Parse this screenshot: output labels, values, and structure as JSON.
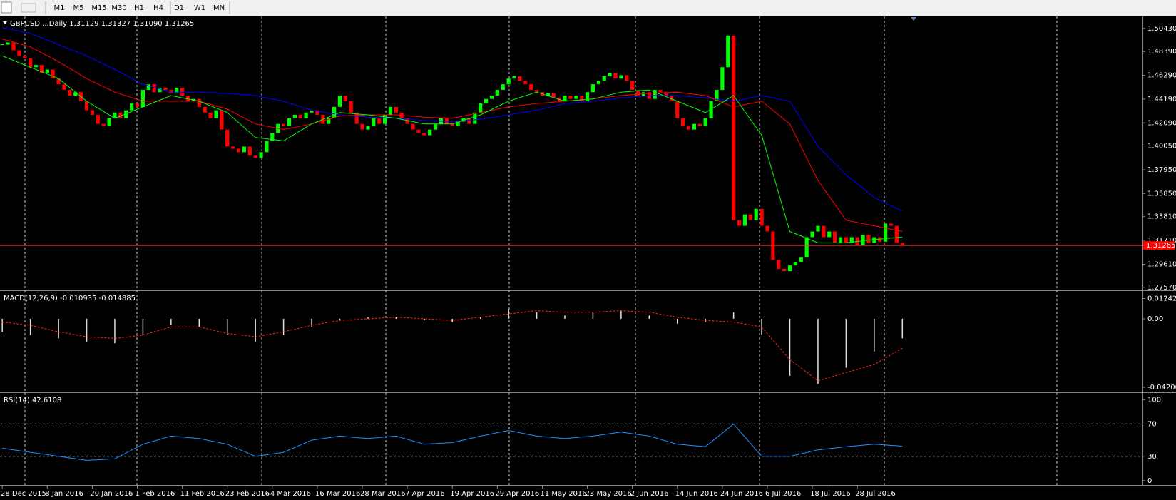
{
  "toolbar": {
    "timeframes": [
      "M1",
      "M5",
      "M15",
      "M30",
      "H1",
      "H4",
      "D1",
      "W1",
      "MN"
    ]
  },
  "chart": {
    "title": "GBPUSD...,Daily",
    "ohlc": [
      "1.31129",
      "1.31327",
      "1.31090",
      "1.31265"
    ],
    "ylim": [
      1.2737,
      1.5149
    ],
    "yticks": [
      {
        "value": 1.5043,
        "label": "1.50430"
      },
      {
        "value": 1.4839,
        "label": "1.48390"
      },
      {
        "value": 1.4629,
        "label": "1.46290"
      },
      {
        "value": 1.4419,
        "label": "1.44190"
      },
      {
        "value": 1.4209,
        "label": "1.42090"
      },
      {
        "value": 1.4005,
        "label": "1.40050"
      },
      {
        "value": 1.3795,
        "label": "1.37950"
      },
      {
        "value": 1.3585,
        "label": "1.35850"
      },
      {
        "value": 1.3381,
        "label": "1.33810"
      },
      {
        "value": 1.3171,
        "label": "1.31710"
      },
      {
        "value": 1.2961,
        "label": "1.29610"
      },
      {
        "value": 1.2757,
        "label": "1.27570"
      }
    ],
    "price": 1.31265,
    "closes": [
      1.49,
      1.492,
      1.485,
      1.48,
      1.478,
      1.47,
      1.472,
      1.465,
      1.468,
      1.46,
      1.455,
      1.45,
      1.445,
      1.448,
      1.44,
      1.432,
      1.428,
      1.42,
      1.418,
      1.425,
      1.43,
      1.425,
      1.432,
      1.438,
      1.435,
      1.45,
      1.455,
      1.448,
      1.452,
      1.45,
      1.447,
      1.452,
      1.445,
      1.44,
      1.442,
      1.435,
      1.43,
      1.425,
      1.432,
      1.415,
      1.4,
      1.398,
      1.395,
      1.4,
      1.392,
      1.39,
      1.395,
      1.405,
      1.412,
      1.42,
      1.418,
      1.425,
      1.428,
      1.425,
      1.43,
      1.432,
      1.428,
      1.42,
      1.425,
      1.435,
      1.445,
      1.44,
      1.43,
      1.42,
      1.415,
      1.418,
      1.425,
      1.42,
      1.428,
      1.435,
      1.43,
      1.425,
      1.42,
      1.415,
      1.412,
      1.41,
      1.415,
      1.42,
      1.425,
      1.42,
      1.418,
      1.422,
      1.425,
      1.42,
      1.43,
      1.438,
      1.442,
      1.445,
      1.45,
      1.455,
      1.46,
      1.462,
      1.458,
      1.455,
      1.45,
      1.448,
      1.445,
      1.447,
      1.443,
      1.44,
      1.445,
      1.442,
      1.445,
      1.44,
      1.448,
      1.455,
      1.458,
      1.462,
      1.465,
      1.46,
      1.463,
      1.458,
      1.45,
      1.445,
      1.448,
      1.442,
      1.45,
      1.448,
      1.445,
      1.44,
      1.425,
      1.418,
      1.415,
      1.42,
      1.418,
      1.425,
      1.44,
      1.45,
      1.47,
      1.498,
      1.335,
      1.33,
      1.34,
      1.335,
      1.345,
      1.33,
      1.325,
      1.3,
      1.292,
      1.29,
      1.295,
      1.298,
      1.302,
      1.32,
      1.325,
      1.33,
      1.32,
      1.325,
      1.315,
      1.32,
      1.315,
      1.32,
      1.313,
      1.322,
      1.315,
      1.32,
      1.316,
      1.332,
      1.33,
      1.315,
      1.313
    ],
    "sample_bars": [
      0,
      5,
      10,
      15,
      20,
      25,
      30,
      35,
      40,
      45,
      50,
      55,
      60,
      65,
      70,
      75,
      80,
      85,
      90,
      95,
      100,
      105,
      110,
      115,
      120,
      125,
      130,
      135,
      140,
      145,
      150,
      155,
      160
    ],
    "ma": [
      {
        "color": "#0000ff",
        "values": [
          1.505,
          1.5,
          1.49,
          1.48,
          1.468,
          1.455,
          1.448,
          1.448,
          1.447,
          1.445,
          1.44,
          1.432,
          1.428,
          1.426,
          1.425,
          1.423,
          1.422,
          1.424,
          1.428,
          1.432,
          1.438,
          1.44,
          1.443,
          1.445,
          1.445,
          1.443,
          1.44,
          1.445,
          1.44,
          1.4,
          1.375,
          1.355,
          1.343
        ]
      },
      {
        "color": "#ff0000",
        "values": [
          1.495,
          1.488,
          1.475,
          1.46,
          1.448,
          1.44,
          1.44,
          1.44,
          1.433,
          1.42,
          1.415,
          1.42,
          1.427,
          1.428,
          1.428,
          1.426,
          1.425,
          1.43,
          1.435,
          1.438,
          1.44,
          1.442,
          1.445,
          1.447,
          1.448,
          1.445,
          1.435,
          1.44,
          1.42,
          1.37,
          1.335,
          1.33,
          1.325
        ]
      },
      {
        "color": "#00ff00",
        "values": [
          1.48,
          1.47,
          1.46,
          1.44,
          1.425,
          1.435,
          1.445,
          1.44,
          1.43,
          1.408,
          1.405,
          1.42,
          1.43,
          1.428,
          1.425,
          1.42,
          1.42,
          1.428,
          1.44,
          1.448,
          1.44,
          1.442,
          1.448,
          1.45,
          1.44,
          1.43,
          1.445,
          1.41,
          1.325,
          1.315,
          1.315,
          1.318,
          1.32
        ]
      }
    ],
    "macd": {
      "label": "MACD(12,26,9) -0.010935 -0.014885",
      "ylim": [
        -0.0442,
        0.0166
      ],
      "yticks": [
        0.012424,
        {
          "value": 0,
          "label": "0.00"
        },
        -0.042007
      ],
      "histogram": [
        -0.008,
        -0.01,
        -0.012,
        -0.014,
        -0.015,
        -0.01,
        -0.004,
        -0.005,
        -0.01,
        -0.014,
        -0.01,
        -0.005,
        -0.001,
        0.001,
        0.001,
        -0.001,
        -0.002,
        0.001,
        0.006,
        0.004,
        0.002,
        0.004,
        0.005,
        0.002,
        -0.003,
        -0.002,
        0.004,
        -0.01,
        -0.035,
        -0.04,
        -0.03,
        -0.02,
        -0.012
      ],
      "signal": [
        -0.002,
        -0.004,
        -0.008,
        -0.011,
        -0.012,
        -0.01,
        -0.005,
        -0.005,
        -0.009,
        -0.011,
        -0.008,
        -0.004,
        -0.001,
        0,
        0.001,
        0,
        -0.001,
        0.001,
        0.003,
        0.005,
        0.004,
        0.004,
        0.005,
        0.004,
        0.001,
        -0.001,
        -0.002,
        -0.005,
        -0.025,
        -0.038,
        -0.033,
        -0.028,
        -0.018
      ]
    },
    "rsi": {
      "label": "RSI(14) 42.6108",
      "ylim": [
        -4.6,
        107.4
      ],
      "yticks": [
        100,
        70,
        30,
        0
      ],
      "levels": [
        70,
        30
      ],
      "values": [
        40,
        35,
        30,
        25,
        27,
        45,
        55,
        52,
        45,
        30,
        35,
        50,
        55,
        52,
        55,
        45,
        47,
        55,
        62,
        55,
        52,
        55,
        60,
        55,
        45,
        42,
        70,
        30,
        30,
        38,
        42,
        45,
        42.6
      ]
    },
    "categories": [
      "28 Dec 2015",
      "8 Jan 2016",
      "20 Jan 2016",
      "1 Feb 2016",
      "11 Feb 2016",
      "23 Feb 2016",
      "4 Mar 2016",
      "16 Mar 2016",
      "28 Mar 2016",
      "7 Apr 2016",
      "19 Apr 2016",
      "29 Apr 2016",
      "11 May 2016",
      "23 May 2016",
      "2 Jun 2016",
      "14 Jun 2016",
      "24 Jun 2016",
      "6 Jul 2016",
      "18 Jul 2016",
      "28 Jul 2016"
    ]
  }
}
